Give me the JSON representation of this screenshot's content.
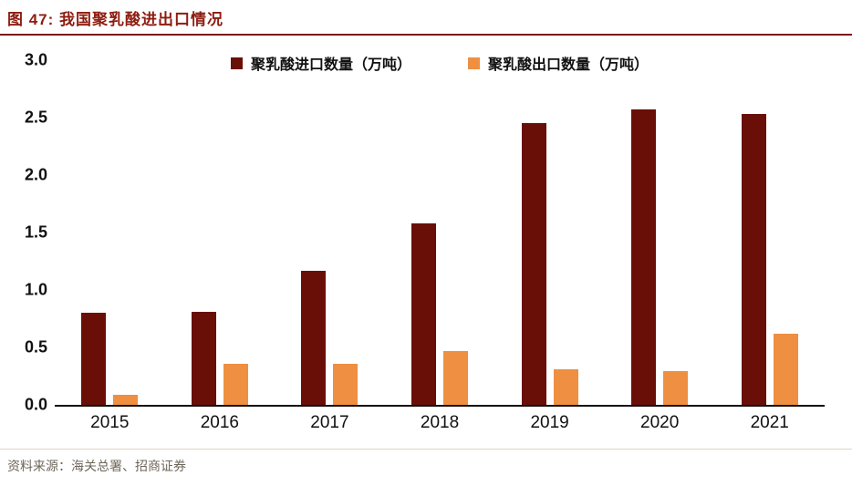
{
  "header": {
    "title": "图 47: 我国聚乳酸进出口情况",
    "title_color": "#8e1d10"
  },
  "footer": {
    "source": "资料来源：海关总署、招商证券"
  },
  "chart_data": {
    "type": "bar",
    "title": "图 47: 我国聚乳酸进出口情况",
    "categories": [
      "2015",
      "2016",
      "2017",
      "2018",
      "2019",
      "2020",
      "2021"
    ],
    "series": [
      {
        "name": "聚乳酸进口数量（万吨）",
        "color": "#690f08",
        "values": [
          0.8,
          0.81,
          1.17,
          1.58,
          2.45,
          2.57,
          2.53
        ]
      },
      {
        "name": "聚乳酸出口数量（万吨）",
        "color": "#ee8f41",
        "values": [
          0.09,
          0.36,
          0.36,
          0.47,
          0.31,
          0.29,
          0.62
        ]
      }
    ],
    "xlabel": "",
    "ylabel": "",
    "ylim": [
      0,
      3.0
    ],
    "yticks": [
      3.0,
      2.5,
      2.0,
      1.5,
      1.0,
      0.5,
      0.0
    ],
    "grid": false,
    "legend_position": "top"
  }
}
